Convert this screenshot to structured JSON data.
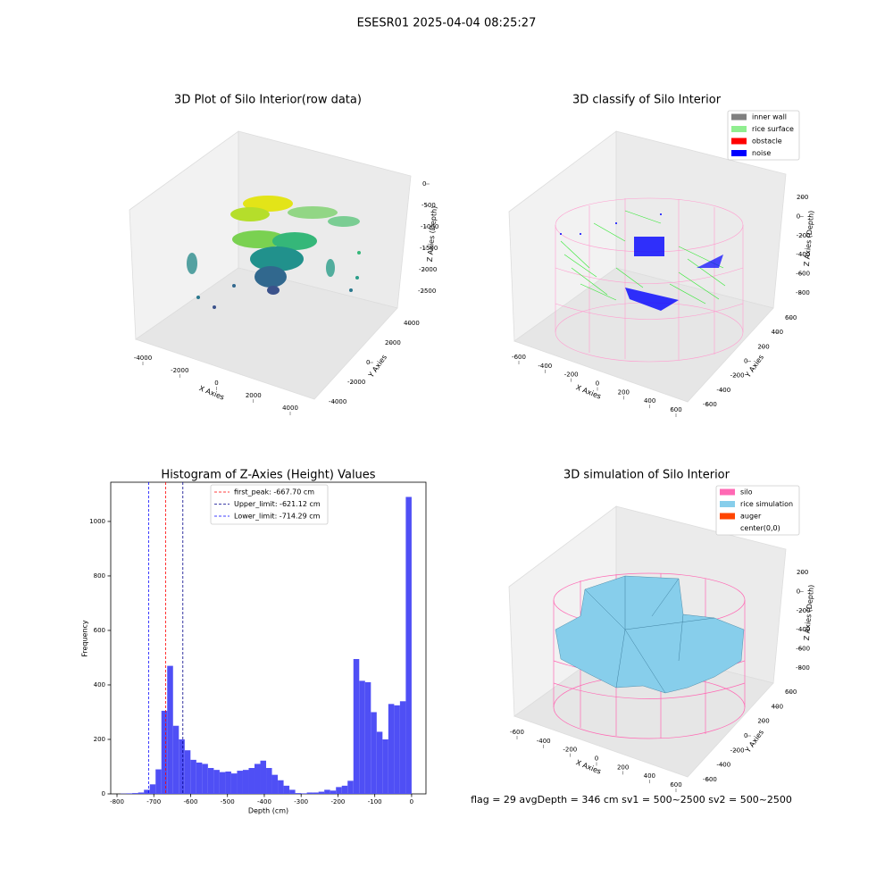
{
  "title": "ESESR01 2025-04-04 08:25:27",
  "annotation": "flag = 29  avgDepth = 346 cm  sv1 = 500~2500  sv2 = 500~2500",
  "chart_data": [
    {
      "type": "scatter3d",
      "title": "3D Plot of Silo Interior(row data)",
      "x_label": "X Axies",
      "y_label": "Y Axies",
      "z_label": "Z Axies (Depth)",
      "xticks": [
        -4000,
        -2000,
        0,
        2000,
        4000
      ],
      "yticks": [
        -4000,
        -2000,
        0,
        2000,
        4000
      ],
      "zticks": [
        0,
        -500,
        -1000,
        -1500,
        -2000,
        -2500
      ]
    },
    {
      "type": "scatter3d",
      "title": "3D classify of Silo Interior",
      "x_label": "X Axies",
      "y_label": "Y Axies",
      "z_label": "Z Axies (Depth)",
      "xticks": [
        -600,
        -400,
        -200,
        0,
        200,
        400,
        600
      ],
      "yticks": [
        -600,
        -400,
        -200,
        0,
        200,
        400,
        600
      ],
      "zticks": [
        200,
        0,
        -200,
        -400,
        -600,
        -800
      ],
      "legend": [
        {
          "name": "inner wall",
          "color": "#808080"
        },
        {
          "name": "rice surface",
          "color": "#90ee90"
        },
        {
          "name": "obstacle",
          "color": "#ff0000"
        },
        {
          "name": "noise",
          "color": "#0000ff"
        }
      ]
    },
    {
      "type": "histogram",
      "title": "Histogram of Z-Axies (Height) Values",
      "x_label": "Depth (cm)",
      "y_label": "Frequency",
      "color": "#4f4ff5",
      "bins": [
        -790,
        -774.2,
        -758.4,
        -742.6,
        -726.8,
        -711,
        -695.2,
        -679.4,
        -663.6,
        -647.8,
        -632,
        -616.2,
        -600.4,
        -584.6,
        -568.8,
        -553,
        -537.2,
        -521.4,
        -505.6,
        -489.8,
        -474,
        -458.2,
        -442.4,
        -426.6,
        -410.8,
        -395,
        -379.2,
        -363.4,
        -347.6,
        -331.8,
        -316,
        -300.2,
        -284.4,
        -268.6,
        -252.8,
        -237,
        -221.2,
        -205.4,
        -189.6,
        -173.8,
        -158,
        -142.2,
        -126.4,
        -110.6,
        -94.8,
        -79,
        -63.2,
        -47.4,
        -31.6,
        -15.8,
        0
      ],
      "values": [
        1,
        2,
        3,
        5,
        15,
        35,
        90,
        305,
        470,
        250,
        200,
        160,
        125,
        115,
        110,
        95,
        88,
        80,
        82,
        75,
        85,
        88,
        95,
        110,
        122,
        95,
        70,
        50,
        30,
        15,
        3,
        2,
        5,
        5,
        8,
        15,
        12,
        25,
        30,
        48,
        495,
        415,
        410,
        300,
        228,
        200,
        330,
        325,
        340,
        1090
      ],
      "xlim": [
        -817,
        39
      ],
      "ylim": [
        0,
        1144
      ],
      "xticks": [
        -800,
        -700,
        -600,
        -500,
        -400,
        -300,
        -200,
        -100,
        0
      ],
      "yticks": [
        0,
        200,
        400,
        600,
        800,
        1000
      ],
      "lines": [
        {
          "label": "first_peak: -667.70 cm",
          "value": -667.7,
          "color": "#ff0000"
        },
        {
          "label": "Upper_limit: -621.12 cm",
          "value": -621.12,
          "color": "#00008b"
        },
        {
          "label": "Lower_limit: -714.29 cm",
          "value": -714.29,
          "color": "#0000ff"
        }
      ]
    },
    {
      "type": "surface3d",
      "title": "3D simulation of Silo Interior",
      "x_label": "X Axies",
      "y_label": "Y Axies",
      "z_label": "Z Axies (Depth)",
      "xticks": [
        -600,
        -400,
        -200,
        0,
        200,
        400,
        600
      ],
      "yticks": [
        -600,
        -400,
        -200,
        0,
        200,
        400,
        600
      ],
      "zticks": [
        200,
        0,
        -200,
        -400,
        -600,
        -800
      ],
      "legend": [
        {
          "name": "silo",
          "color": "#ff69b4"
        },
        {
          "name": "rice simulation",
          "color": "#87ceeb"
        },
        {
          "name": "auger",
          "color": "#ff4500"
        },
        {
          "name": "center(0,0)",
          "color": "#ffffff"
        }
      ]
    }
  ]
}
